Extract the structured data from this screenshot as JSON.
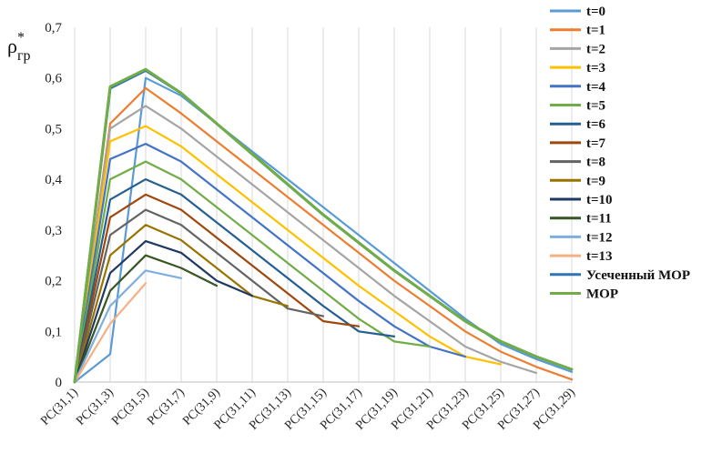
{
  "chart_data": {
    "type": "line",
    "ylabel": "ρ*гр",
    "ylabel_main": "ρ",
    "ylabel_sup": "*",
    "ylabel_sub": "гр",
    "ylim": [
      0,
      0.7
    ],
    "yticks": [
      "0",
      "0,1",
      "0,2",
      "0,3",
      "0,4",
      "0,5",
      "0,6",
      "0,7"
    ],
    "categories": [
      "PC(31,1)",
      "PC(31,3)",
      "PC(31,5)",
      "PC(31,7)",
      "PC(31,9)",
      "PC(31,11)",
      "PC(31,13)",
      "PC(31,15)",
      "PC(31,17)",
      "PC(31,19)",
      "PC(31,21)",
      "PC(31,23)",
      "PC(31,25)",
      "PC(31,27)",
      "PC(31,29)"
    ],
    "grid": "vertical",
    "legend_position": "right",
    "series": [
      {
        "name": "t=0",
        "color": "#5b9bd5",
        "values": [
          0,
          0.055,
          0.6,
          0.565,
          0.51,
          0.455,
          0.4,
          0.345,
          0.29,
          0.235,
          0.18,
          0.125,
          0.075,
          0.045,
          0.02
        ]
      },
      {
        "name": "t=1",
        "color": "#ed7d31",
        "values": [
          0,
          0.51,
          0.58,
          0.53,
          0.475,
          0.42,
          0.365,
          0.31,
          0.255,
          0.2,
          0.15,
          0.1,
          0.06,
          0.03,
          0.005
        ]
      },
      {
        "name": "t=2",
        "color": "#a5a5a5",
        "values": [
          0,
          0.5,
          0.545,
          0.5,
          0.445,
          0.39,
          0.335,
          0.28,
          0.225,
          0.17,
          0.12,
          0.07,
          0.04,
          0.018,
          null
        ]
      },
      {
        "name": "t=3",
        "color": "#ffc000",
        "values": [
          0,
          0.475,
          0.505,
          0.465,
          0.41,
          0.355,
          0.3,
          0.245,
          0.19,
          0.14,
          0.09,
          0.05,
          0.035,
          null,
          null
        ]
      },
      {
        "name": "t=4",
        "color": "#4472c4",
        "values": [
          0,
          0.44,
          0.47,
          0.435,
          0.38,
          0.325,
          0.27,
          0.215,
          0.16,
          0.11,
          0.07,
          0.05,
          null,
          null,
          null
        ]
      },
      {
        "name": "t=5",
        "color": "#70ad47",
        "values": [
          0,
          0.4,
          0.435,
          0.4,
          0.345,
          0.29,
          0.235,
          0.18,
          0.125,
          0.08,
          0.07,
          null,
          null,
          null,
          null
        ]
      },
      {
        "name": "t=6",
        "color": "#255e91",
        "values": [
          0,
          0.36,
          0.4,
          0.37,
          0.315,
          0.26,
          0.205,
          0.15,
          0.1,
          0.09,
          null,
          null,
          null,
          null,
          null
        ]
      },
      {
        "name": "t=7",
        "color": "#9e480e",
        "values": [
          0,
          0.325,
          0.37,
          0.34,
          0.285,
          0.23,
          0.175,
          0.12,
          0.11,
          null,
          null,
          null,
          null,
          null,
          null
        ]
      },
      {
        "name": "t=8",
        "color": "#636363",
        "values": [
          0,
          0.29,
          0.34,
          0.31,
          0.255,
          0.2,
          0.145,
          0.13,
          null,
          null,
          null,
          null,
          null,
          null,
          null
        ]
      },
      {
        "name": "t=9",
        "color": "#997300",
        "values": [
          0,
          0.25,
          0.31,
          0.28,
          0.225,
          0.17,
          0.15,
          null,
          null,
          null,
          null,
          null,
          null,
          null,
          null
        ]
      },
      {
        "name": "t=10",
        "color": "#1f3864",
        "values": [
          0,
          0.215,
          0.278,
          0.255,
          0.2,
          0.17,
          null,
          null,
          null,
          null,
          null,
          null,
          null,
          null,
          null
        ]
      },
      {
        "name": "t=11",
        "color": "#375623",
        "values": [
          0,
          0.18,
          0.25,
          0.225,
          0.19,
          null,
          null,
          null,
          null,
          null,
          null,
          null,
          null,
          null,
          null
        ]
      },
      {
        "name": "t=12",
        "color": "#7cafdd",
        "values": [
          0,
          0.15,
          0.22,
          0.205,
          null,
          null,
          null,
          null,
          null,
          null,
          null,
          null,
          null,
          null,
          null
        ]
      },
      {
        "name": "t=13",
        "color": "#f4b183",
        "values": [
          0,
          0.115,
          0.195,
          null,
          null,
          null,
          null,
          null,
          null,
          null,
          null,
          null,
          null,
          null,
          null
        ]
      },
      {
        "name": "Усеченный МОР",
        "color": "#2e75b6",
        "values": [
          0,
          0.58,
          0.615,
          0.57,
          0.51,
          0.45,
          0.39,
          0.33,
          0.275,
          0.22,
          0.17,
          0.12,
          0.08,
          0.05,
          0.025
        ]
      },
      {
        "name": "МОР",
        "color": "#70ad47",
        "values": [
          0,
          0.583,
          0.617,
          0.57,
          0.51,
          0.45,
          0.39,
          0.33,
          0.275,
          0.22,
          0.17,
          0.12,
          0.08,
          0.05,
          0.025
        ]
      }
    ]
  }
}
